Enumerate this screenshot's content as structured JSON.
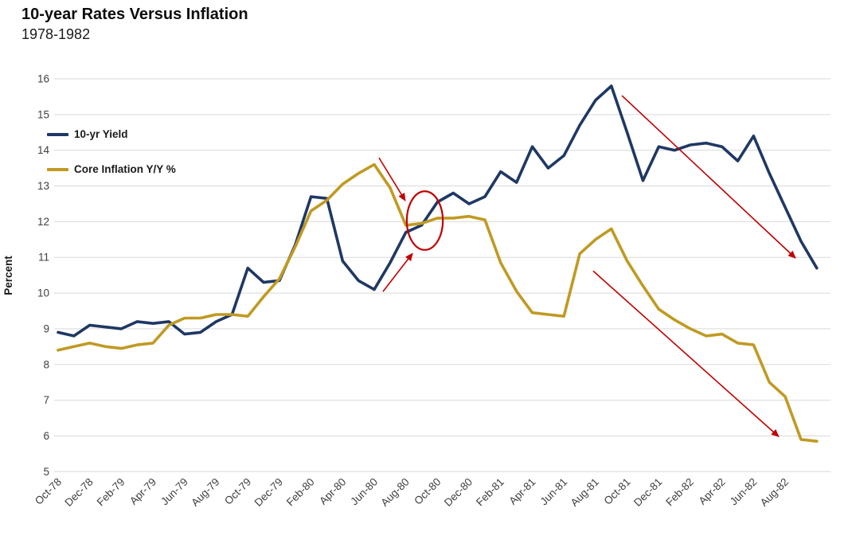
{
  "header": {
    "title": "10-year Rates Versus Inflation",
    "subtitle": "1978-1982"
  },
  "legend": {
    "items": [
      {
        "label": "10-yr Yield",
        "color": "#1f3864"
      },
      {
        "label": "Core Inflation Y/Y %",
        "color": "#c09a22"
      }
    ]
  },
  "chart_data": {
    "type": "line",
    "title": "10-year Rates Versus Inflation",
    "subtitle": "1978-1982",
    "xlabel": "",
    "ylabel": "Percent",
    "ylim": [
      5,
      16
    ],
    "y_ticks": [
      5,
      6,
      7,
      8,
      9,
      10,
      11,
      12,
      13,
      14,
      15,
      16
    ],
    "grid": "horizontal",
    "gridline_color": "#d9d9d9",
    "legend_position": "inside-top-left",
    "categories": [
      "Oct-78",
      "Nov-78",
      "Dec-78",
      "Jan-79",
      "Feb-79",
      "Mar-79",
      "Apr-79",
      "May-79",
      "Jun-79",
      "Jul-79",
      "Aug-79",
      "Sep-79",
      "Oct-79",
      "Nov-79",
      "Dec-79",
      "Jan-80",
      "Feb-80",
      "Mar-80",
      "Apr-80",
      "May-80",
      "Jun-80",
      "Jul-80",
      "Aug-80",
      "Sep-80",
      "Oct-80",
      "Nov-80",
      "Dec-80",
      "Jan-81",
      "Feb-81",
      "Mar-81",
      "Apr-81",
      "May-81",
      "Jun-81",
      "Jul-81",
      "Aug-81",
      "Sep-81",
      "Oct-81",
      "Nov-81",
      "Dec-81",
      "Jan-82",
      "Feb-82",
      "Mar-82",
      "Apr-82",
      "May-82",
      "Jun-82",
      "Jul-82",
      "Aug-82",
      "Sep-82",
      "Oct-82"
    ],
    "x_tick_interval": 2,
    "x_tick_labels": [
      "Oct-78",
      "Dec-78",
      "Feb-79",
      "Apr-79",
      "Jun-79",
      "Aug-79",
      "Oct-79",
      "Dec-79",
      "Feb-80",
      "Apr-80",
      "Jun-80",
      "Aug-80",
      "Oct-80",
      "Dec-80",
      "Feb-81",
      "Apr-81",
      "Jun-81",
      "Aug-81",
      "Oct-81",
      "Dec-81",
      "Feb-82",
      "Apr-82",
      "Jun-82",
      "Aug-82"
    ],
    "series": [
      {
        "name": "10-yr Yield",
        "color": "#1f3864",
        "values": [
          8.9,
          8.8,
          9.1,
          9.05,
          9.0,
          9.2,
          9.15,
          9.2,
          8.85,
          8.9,
          9.2,
          9.4,
          10.7,
          10.3,
          10.35,
          11.35,
          12.7,
          12.65,
          10.9,
          10.35,
          10.1,
          10.85,
          11.7,
          11.9,
          12.55,
          12.8,
          12.5,
          12.7,
          13.4,
          13.1,
          14.1,
          13.5,
          13.85,
          14.7,
          15.4,
          15.8,
          14.5,
          13.15,
          14.1,
          14.0,
          14.15,
          14.2,
          14.1,
          13.7,
          14.4,
          13.35,
          12.4,
          11.45,
          10.7
        ]
      },
      {
        "name": "Core Inflation Y/Y %",
        "color": "#c09a22",
        "values": [
          8.4,
          8.5,
          8.6,
          8.5,
          8.45,
          8.55,
          8.6,
          9.1,
          9.3,
          9.3,
          9.4,
          9.4,
          9.35,
          9.9,
          10.4,
          11.3,
          12.3,
          12.6,
          13.05,
          13.35,
          13.6,
          12.95,
          11.9,
          11.95,
          12.1,
          12.1,
          12.15,
          12.05,
          10.85,
          10.05,
          9.45,
          9.4,
          9.35,
          11.1,
          11.5,
          11.8,
          10.9,
          10.2,
          9.55,
          9.25,
          9.0,
          8.8,
          8.85,
          8.6,
          8.55,
          7.5,
          7.1,
          5.9,
          5.85
        ]
      }
    ],
    "annotations": {
      "color": "#c00000",
      "ellipse": {
        "x_index": 23.2,
        "y_value": 12.03,
        "rx_index_units": 1.14,
        "ry_value_units": 0.82
      },
      "arrows": [
        {
          "from": [
            20.3,
            13.79
          ],
          "to": [
            21.96,
            12.59
          ]
        },
        {
          "from": [
            20.55,
            10.04
          ],
          "to": [
            22.42,
            11.11
          ]
        },
        {
          "from": [
            35.67,
            15.53
          ],
          "to": [
            46.65,
            10.98
          ]
        },
        {
          "from": [
            33.85,
            10.62
          ],
          "to": [
            45.59,
            5.98
          ]
        }
      ]
    }
  }
}
